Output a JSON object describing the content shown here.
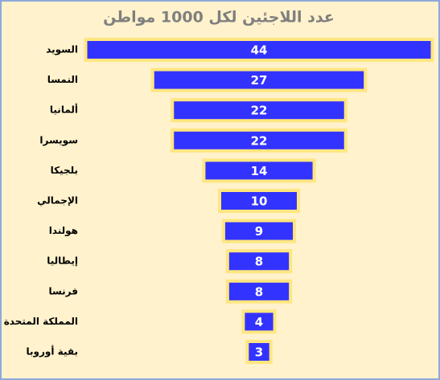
{
  "chart_data": {
    "type": "funnel",
    "title": "عدد اللاجئين لكل 1000 مواطن",
    "categories": [
      "السويد",
      "النمسا",
      "ألمانيا",
      "سويسرا",
      "بلجيكا",
      "الإجمالي",
      "هولندا",
      "إيطاليا",
      "فرنسا",
      "المملكة المتحدة",
      "بقية أوروبا"
    ],
    "values": [
      44,
      27,
      22,
      22,
      14,
      10,
      9,
      8,
      8,
      4,
      3
    ],
    "color": "#3333ff"
  }
}
